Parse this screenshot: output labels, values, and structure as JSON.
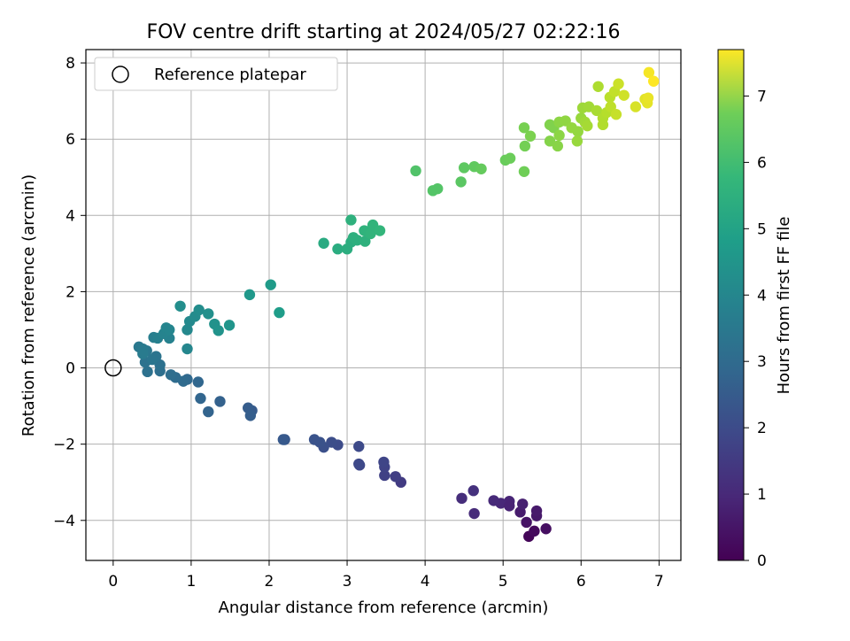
{
  "chart_data": {
    "type": "scatter",
    "title": "FOV centre drift starting at 2024/05/27 02:22:16",
    "xlabel": "Angular distance from reference (arcmin)",
    "ylabel": "Rotation from reference (arcmin)",
    "xlim": [
      -0.35,
      7.28
    ],
    "ylim": [
      -5.05,
      8.35
    ],
    "xticks": [
      0,
      1,
      2,
      3,
      4,
      5,
      6,
      7
    ],
    "yticks": [
      -4,
      -2,
      0,
      2,
      4,
      6,
      8
    ],
    "grid": true,
    "legend": {
      "position": "top-left",
      "entries": [
        "Reference platepar"
      ]
    },
    "reference_point": {
      "x": 0,
      "y": 0
    },
    "colorbar": {
      "label": "Hours from first FF file",
      "range": [
        0,
        7.7
      ],
      "ticks": [
        0,
        1,
        2,
        3,
        4,
        5,
        6,
        7
      ],
      "colormap": "viridis"
    },
    "points": [
      [
        5.33,
        -4.42,
        0.1
      ],
      [
        5.4,
        -4.28,
        0.2
      ],
      [
        5.55,
        -4.22,
        0.3
      ],
      [
        5.3,
        -4.05,
        0.4
      ],
      [
        5.43,
        -3.88,
        0.5
      ],
      [
        5.43,
        -3.75,
        0.55
      ],
      [
        5.22,
        -3.78,
        0.6
      ],
      [
        5.25,
        -3.57,
        0.7
      ],
      [
        5.08,
        -3.5,
        0.8
      ],
      [
        4.97,
        -3.55,
        0.85
      ],
      [
        4.88,
        -3.48,
        0.9
      ],
      [
        4.63,
        -3.82,
        0.95
      ],
      [
        4.47,
        -3.42,
        1.0
      ],
      [
        4.62,
        -3.22,
        1.1
      ],
      [
        5.08,
        -3.62,
        0.75
      ],
      [
        3.69,
        -3.0,
        1.35
      ],
      [
        3.62,
        -2.85,
        1.45
      ],
      [
        3.48,
        -2.82,
        1.5
      ],
      [
        3.48,
        -2.6,
        1.55
      ],
      [
        3.47,
        -2.47,
        1.6
      ],
      [
        3.16,
        -2.55,
        1.65
      ],
      [
        3.15,
        -2.52,
        1.7
      ],
      [
        3.15,
        -2.06,
        1.75
      ],
      [
        2.88,
        -2.02,
        1.8
      ],
      [
        2.8,
        -1.95,
        1.85
      ],
      [
        2.7,
        -2.08,
        1.9
      ],
      [
        2.65,
        -1.95,
        1.95
      ],
      [
        2.58,
        -1.88,
        2.0
      ],
      [
        2.2,
        -1.88,
        2.1
      ],
      [
        2.18,
        -1.88,
        2.15
      ],
      [
        1.78,
        -1.12,
        2.2
      ],
      [
        1.73,
        -1.05,
        2.25
      ],
      [
        1.76,
        -1.25,
        2.3
      ],
      [
        1.37,
        -0.88,
        2.4
      ],
      [
        1.22,
        -1.15,
        2.45
      ],
      [
        1.12,
        -0.8,
        2.5
      ],
      [
        1.09,
        -0.37,
        2.55
      ],
      [
        0.95,
        -0.3,
        2.6
      ],
      [
        0.9,
        -0.35,
        2.65
      ],
      [
        0.8,
        -0.25,
        2.7
      ],
      [
        0.74,
        -0.18,
        2.75
      ],
      [
        0.6,
        -0.08,
        2.8
      ],
      [
        0.6,
        0.08,
        2.85
      ],
      [
        0.44,
        -0.1,
        2.85
      ],
      [
        0.41,
        0.15,
        2.9
      ],
      [
        0.55,
        0.3,
        2.95
      ],
      [
        0.5,
        0.22,
        3.0
      ],
      [
        0.43,
        0.45,
        3.05
      ],
      [
        0.33,
        0.55,
        3.1
      ],
      [
        0.38,
        0.5,
        3.15
      ],
      [
        0.38,
        0.37,
        3.2
      ],
      [
        0.52,
        0.8,
        3.3
      ],
      [
        0.57,
        0.78,
        3.35
      ],
      [
        0.72,
        0.78,
        3.4
      ],
      [
        0.65,
        0.9,
        3.45
      ],
      [
        0.68,
        1.05,
        3.5
      ],
      [
        0.72,
        1.0,
        3.5
      ],
      [
        0.95,
        0.5,
        3.55
      ],
      [
        0.95,
        1.0,
        3.6
      ],
      [
        0.98,
        1.22,
        3.65
      ],
      [
        1.05,
        1.35,
        3.7
      ],
      [
        1.1,
        1.52,
        3.75
      ],
      [
        0.86,
        1.62,
        3.8
      ],
      [
        1.22,
        1.42,
        3.85
      ],
      [
        1.3,
        1.15,
        3.9
      ],
      [
        1.35,
        0.98,
        3.95
      ],
      [
        1.49,
        1.12,
        4.0
      ],
      [
        1.75,
        1.92,
        4.1
      ],
      [
        2.02,
        2.18,
        4.2
      ],
      [
        2.13,
        1.45,
        4.25
      ],
      [
        2.7,
        3.27,
        4.7
      ],
      [
        2.88,
        3.12,
        4.75
      ],
      [
        3.0,
        3.12,
        4.8
      ],
      [
        3.05,
        3.3,
        4.8
      ],
      [
        3.08,
        3.42,
        4.85
      ],
      [
        3.13,
        3.35,
        4.85
      ],
      [
        3.05,
        3.88,
        4.9
      ],
      [
        3.23,
        3.32,
        4.9
      ],
      [
        3.22,
        3.6,
        4.95
      ],
      [
        3.3,
        3.52,
        5.0
      ],
      [
        3.33,
        3.75,
        5.0
      ],
      [
        3.42,
        3.6,
        5.05
      ],
      [
        3.88,
        5.17,
        5.55
      ],
      [
        4.1,
        4.65,
        5.6
      ],
      [
        4.16,
        4.7,
        5.6
      ],
      [
        4.46,
        4.88,
        5.7
      ],
      [
        4.5,
        5.25,
        5.75
      ],
      [
        4.63,
        5.28,
        5.8
      ],
      [
        4.72,
        5.22,
        5.85
      ],
      [
        5.03,
        5.45,
        5.9
      ],
      [
        5.09,
        5.5,
        5.95
      ],
      [
        5.27,
        5.15,
        6.0
      ],
      [
        5.28,
        5.82,
        6.05
      ],
      [
        5.27,
        6.3,
        6.1
      ],
      [
        5.35,
        6.08,
        6.15
      ],
      [
        5.6,
        6.38,
        6.2
      ],
      [
        5.65,
        6.3,
        6.2
      ],
      [
        5.6,
        5.95,
        6.25
      ],
      [
        5.7,
        5.82,
        6.3
      ],
      [
        5.72,
        6.1,
        6.35
      ],
      [
        5.72,
        6.45,
        6.35
      ],
      [
        5.8,
        6.48,
        6.4
      ],
      [
        5.88,
        6.3,
        6.45
      ],
      [
        5.96,
        6.2,
        6.45
      ],
      [
        5.95,
        5.95,
        6.5
      ],
      [
        6.0,
        6.55,
        6.5
      ],
      [
        6.02,
        6.82,
        6.55
      ],
      [
        6.05,
        6.45,
        6.6
      ],
      [
        6.1,
        6.85,
        6.6
      ],
      [
        6.08,
        6.35,
        6.65
      ],
      [
        6.2,
        6.75,
        6.7
      ],
      [
        6.22,
        7.38,
        6.75
      ],
      [
        6.28,
        6.55,
        6.8
      ],
      [
        6.28,
        6.38,
        6.8
      ],
      [
        6.33,
        6.7,
        6.85
      ],
      [
        6.37,
        7.1,
        6.9
      ],
      [
        6.38,
        6.85,
        6.95
      ],
      [
        6.43,
        7.25,
        7.0
      ],
      [
        6.45,
        6.65,
        7.05
      ],
      [
        6.48,
        7.45,
        7.1
      ],
      [
        6.55,
        7.15,
        7.15
      ],
      [
        6.7,
        6.85,
        7.25
      ],
      [
        6.82,
        7.05,
        7.35
      ],
      [
        6.85,
        6.95,
        7.4
      ],
      [
        6.86,
        7.08,
        7.45
      ],
      [
        6.87,
        7.75,
        7.6
      ],
      [
        6.93,
        7.52,
        7.7
      ]
    ]
  }
}
